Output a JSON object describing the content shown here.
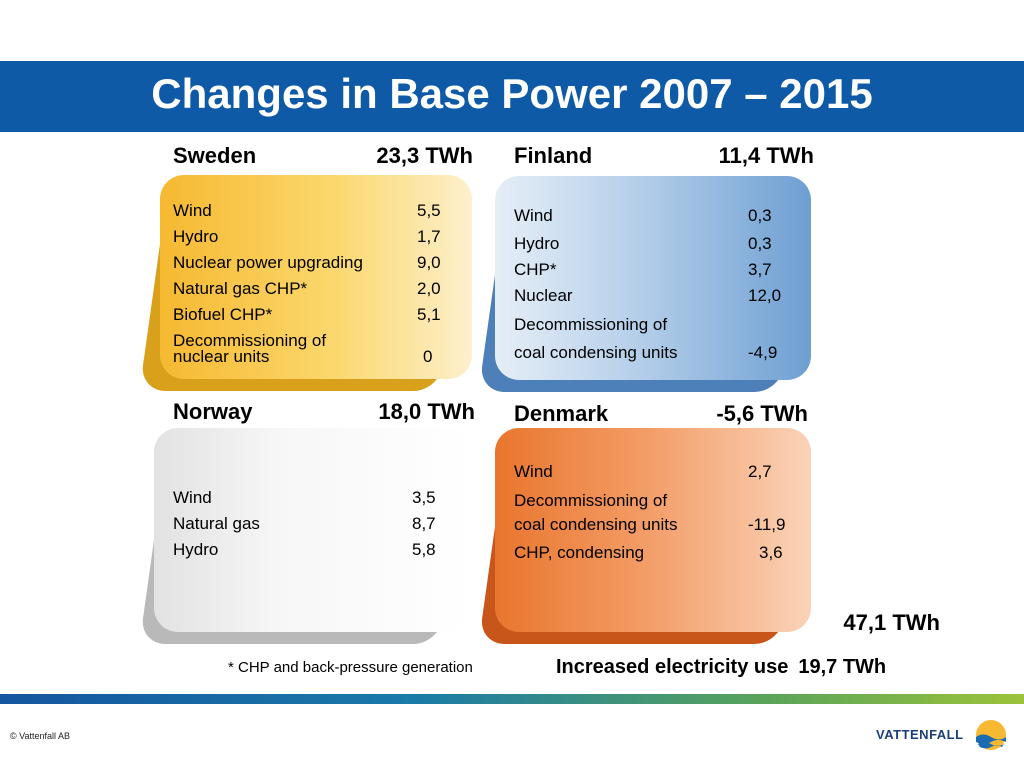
{
  "title": "Changes in Base Power 2007 – 2015",
  "sweden": {
    "name": "Sweden",
    "total": "23,3 TWh",
    "rows": [
      {
        "label": "Wind",
        "value": "5,5"
      },
      {
        "label": "Hydro",
        "value": "1,7"
      },
      {
        "label": "Nuclear power upgrading",
        "value": "9,0"
      },
      {
        "label": "Natural gas CHP*",
        "value": "2,0"
      },
      {
        "label": "Biofuel CHP*",
        "value": "5,1"
      },
      {
        "label": "Decommissioning of",
        "value": ""
      },
      {
        "label": "nuclear units",
        "value": "0"
      }
    ]
  },
  "finland": {
    "name": "Finland",
    "total": "11,4 TWh",
    "rows": [
      {
        "label": "Wind",
        "value": "0,3"
      },
      {
        "label": "Hydro",
        "value": "0,3"
      },
      {
        "label": "CHP*",
        "value": "3,7"
      },
      {
        "label": "Nuclear",
        "value": "12,0"
      },
      {
        "label": "Decommissioning of",
        "value": ""
      },
      {
        "label": "coal condensing units",
        "value": "-4,9"
      }
    ]
  },
  "norway": {
    "name": "Norway",
    "total": "18,0 TWh",
    "rows": [
      {
        "label": "Wind",
        "value": "3,5"
      },
      {
        "label": "Natural gas",
        "value": "8,7"
      },
      {
        "label": "Hydro",
        "value": "5,8"
      }
    ]
  },
  "denmark": {
    "name": "Denmark",
    "total": "-5,6 TWh",
    "rows": [
      {
        "label": "Wind",
        "value": "2,7"
      },
      {
        "label": "Decommissioning of",
        "value": ""
      },
      {
        "label": "coal condensing units",
        "value": "-11,9"
      },
      {
        "label": "CHP, condensing",
        "value": "3,6"
      }
    ]
  },
  "grand_total": "47,1 TWh",
  "footnote": "* CHP and back-pressure generation",
  "increased_use": {
    "label": "Increased electricity use",
    "value": "19,7 TWh"
  },
  "copyright": "© Vattenfall AB",
  "brand": "VATTENFALL",
  "colors": {
    "title_bar": "#0f5aa6",
    "sweden": "#f6b931",
    "finland": "#6e9fd2",
    "norway": "#d9d9d9",
    "denmark": "#e9762e"
  }
}
